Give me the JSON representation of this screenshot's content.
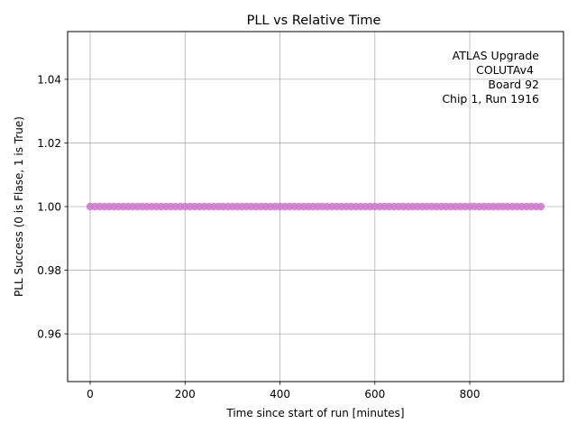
{
  "chart_data": {
    "type": "scatter",
    "title": "PLL vs Relative Time",
    "xlabel": "Time since start of run [minutes]",
    "ylabel": "PLL Success (0 is Flase, 1 is True)",
    "xlim": [
      -47.5,
      997.5
    ],
    "ylim": [
      0.945,
      1.055
    ],
    "xticks": [
      0,
      200,
      400,
      600,
      800
    ],
    "xtick_labels": [
      "0",
      "200",
      "400",
      "600",
      "800"
    ],
    "yticks": [
      0.96,
      0.98,
      1.0,
      1.02,
      1.04
    ],
    "ytick_labels": [
      "0.96",
      "0.98",
      "1.00",
      "1.02",
      "1.04"
    ],
    "grid": true,
    "series": [
      {
        "color": "#d478d0",
        "x_start": 0,
        "x_end": 950,
        "x_step": 10,
        "y": 1
      }
    ],
    "annotation_lines": [
      "ATLAS Upgrade",
      "COLUTAv4",
      "Board 92",
      "Chip 1, Run 1916"
    ]
  }
}
